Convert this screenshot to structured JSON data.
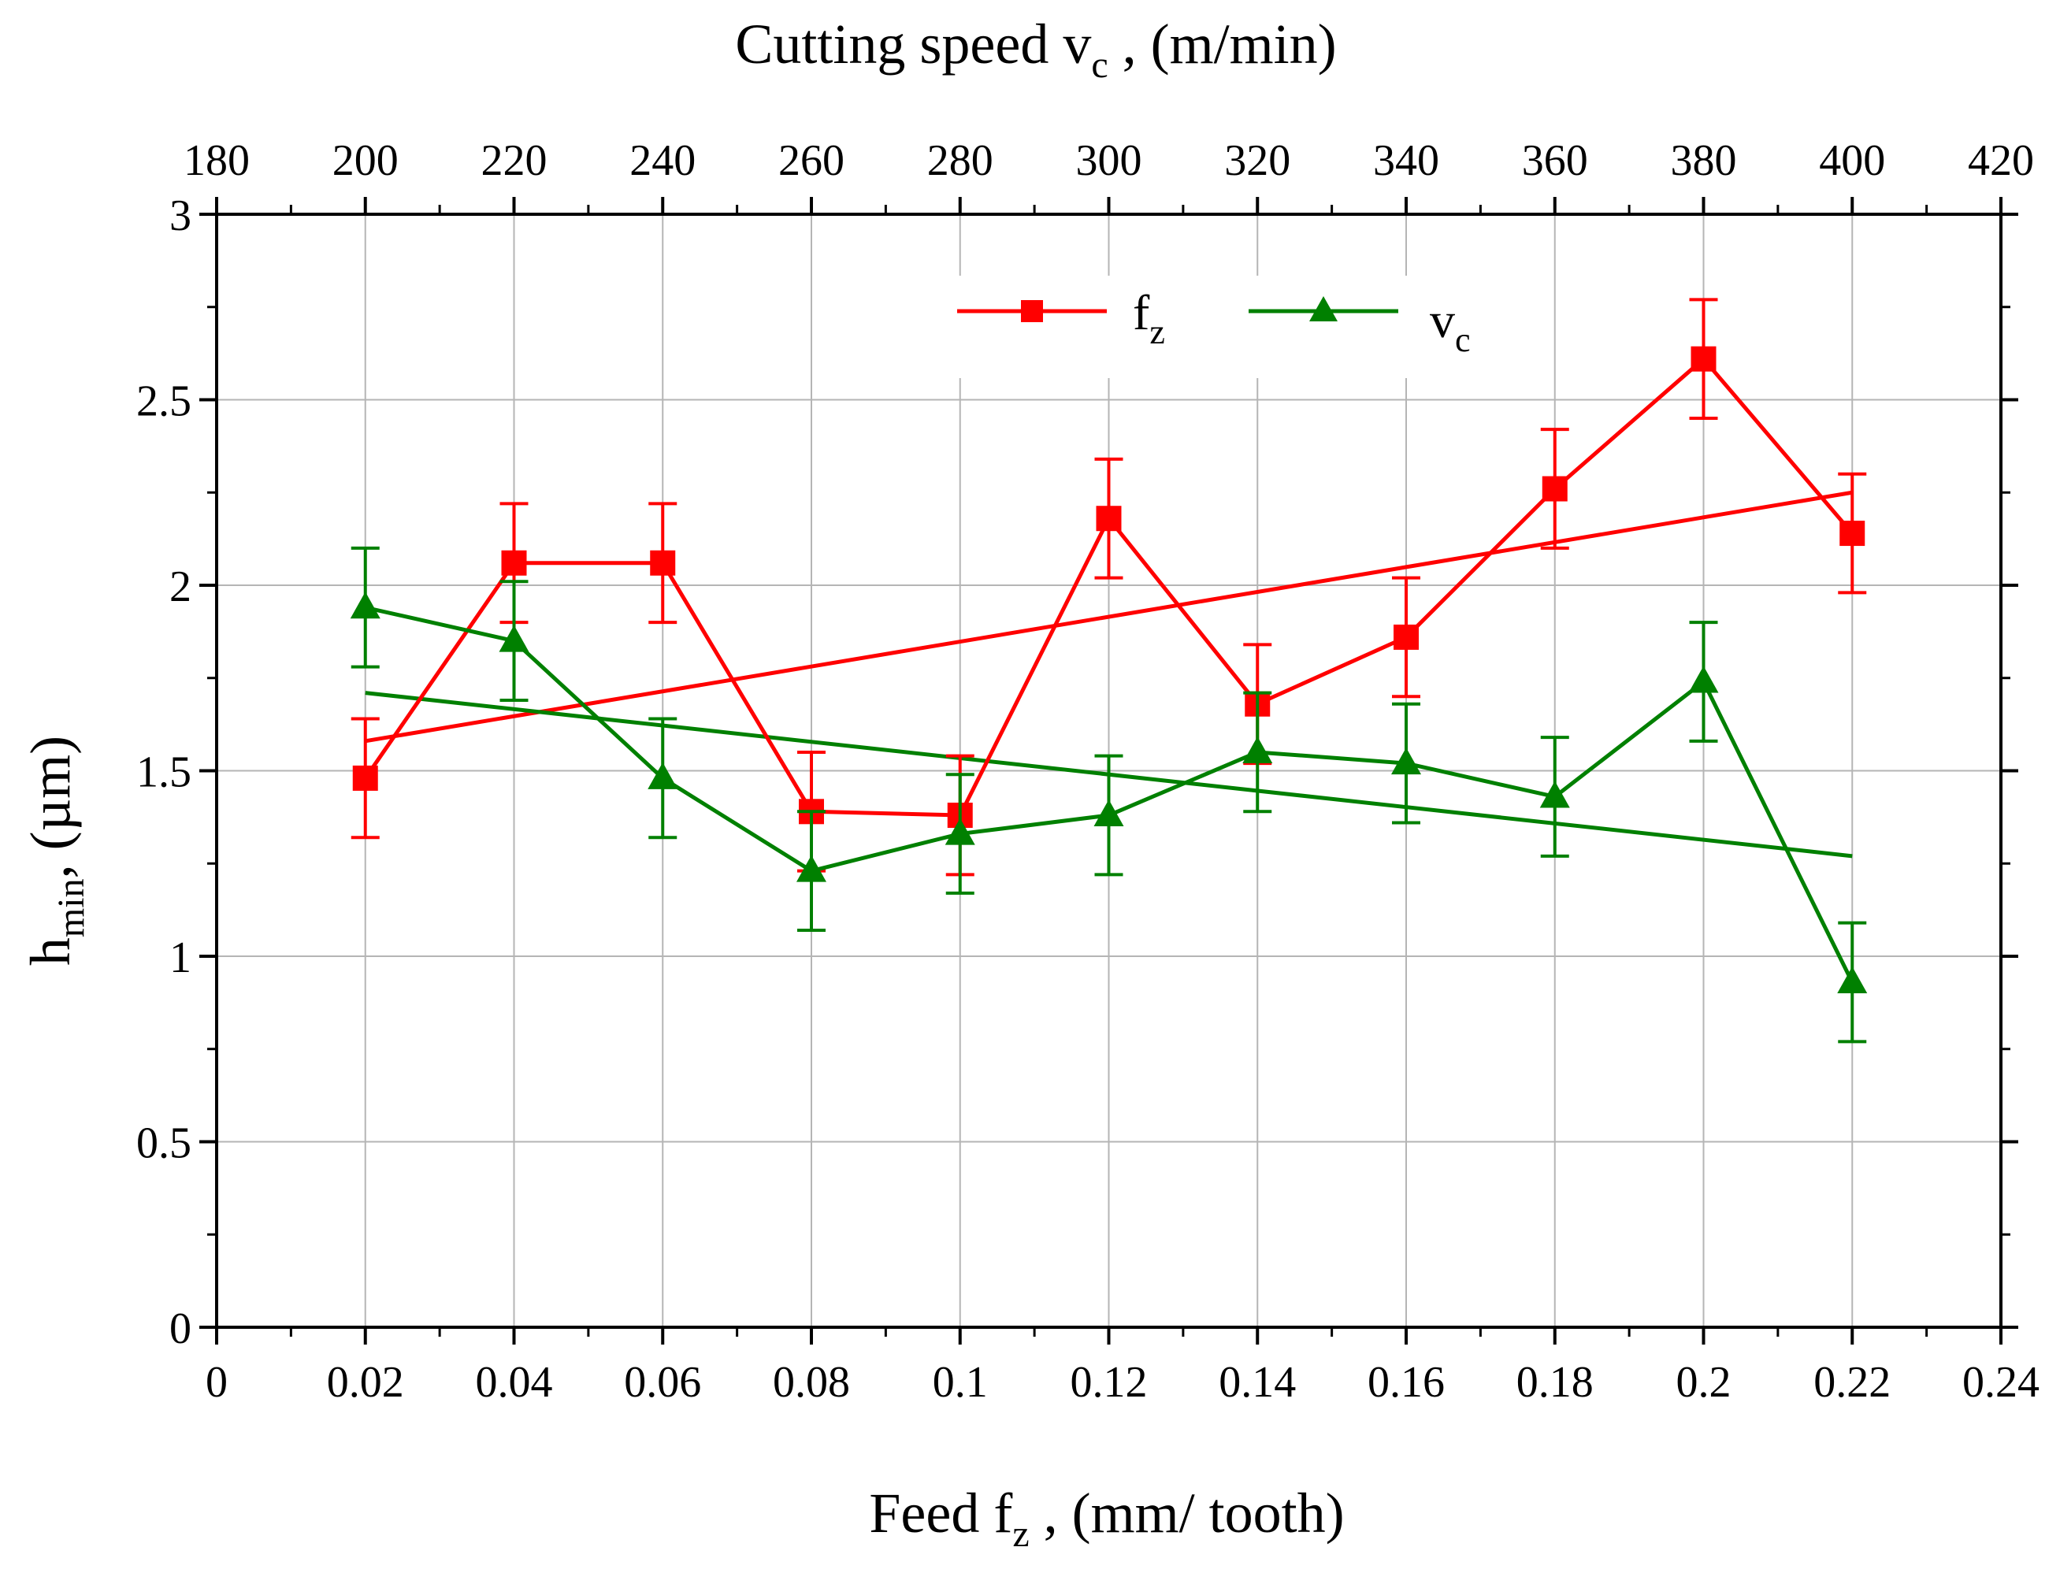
{
  "chart_data": {
    "type": "line",
    "top_axis": {
      "title": "Cutting speed v",
      "title_sub": "c",
      "title_unit": " , (m/min)",
      "range": [
        180,
        420
      ],
      "ticks": [
        "180",
        "200",
        "220",
        "240",
        "260",
        "280",
        "300",
        "320",
        "340",
        "360",
        "380",
        "400",
        "420"
      ]
    },
    "bottom_axis": {
      "title": "Feed f",
      "title_sub": "z",
      "title_unit": " , (mm/ tooth)",
      "range": [
        0,
        0.24
      ],
      "ticks": [
        "0",
        "0.02",
        "0.04",
        "0.06",
        "0.08",
        "0.1",
        "0.12",
        "0.14",
        "0.16",
        "0.18",
        "0.2",
        "0.22",
        "0.24"
      ]
    },
    "y_axis": {
      "title": "h",
      "title_sub": "min",
      "title_unit": ", (µm)",
      "range": [
        0,
        3
      ],
      "ticks": [
        "0",
        "0.5",
        "1",
        "1.5",
        "2",
        "2.5",
        "3"
      ]
    },
    "legend": [
      {
        "label": "f",
        "sub": "z",
        "color": "#ff0000",
        "marker": "square"
      },
      {
        "label": "v",
        "sub": "c",
        "color": "#008000",
        "marker": "triangle"
      }
    ],
    "series": [
      {
        "name": "fz",
        "color": "#ff0000",
        "marker": "square",
        "x": [
          0.02,
          0.04,
          0.06,
          0.08,
          0.1,
          0.12,
          0.14,
          0.16,
          0.18,
          0.2,
          0.22
        ],
        "y": [
          1.48,
          2.06,
          2.06,
          1.39,
          1.38,
          2.18,
          1.68,
          1.86,
          2.26,
          2.61,
          2.14
        ],
        "err": [
          0.16,
          0.16,
          0.16,
          0.16,
          0.16,
          0.16,
          0.16,
          0.16,
          0.16,
          0.16,
          0.16
        ],
        "trend": {
          "x": [
            0.02,
            0.22
          ],
          "y": [
            1.58,
            2.25
          ]
        }
      },
      {
        "name": "vc",
        "color": "#008000",
        "marker": "triangle",
        "x": [
          200,
          220,
          240,
          260,
          280,
          300,
          320,
          340,
          360,
          380,
          400
        ],
        "y": [
          1.94,
          1.85,
          1.48,
          1.23,
          1.33,
          1.38,
          1.55,
          1.52,
          1.43,
          1.74,
          0.93
        ],
        "err": [
          0.16,
          0.16,
          0.16,
          0.16,
          0.16,
          0.16,
          0.16,
          0.16,
          0.16,
          0.16,
          0.16
        ],
        "trend": {
          "x": [
            200,
            400
          ],
          "y": [
            1.71,
            1.27
          ]
        }
      }
    ]
  }
}
